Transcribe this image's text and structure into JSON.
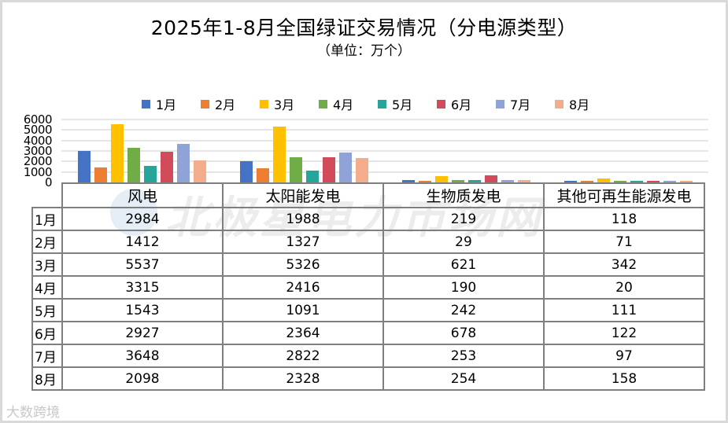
{
  "title": "2025年1-8月全国绿证交易情况（分电源类型）",
  "subtitle": "（单位：万个）",
  "watermark": "北极星电力市场网",
  "corner_watermark": "大数跨境",
  "legend": [
    {
      "label": "1月",
      "color": "#4472c4"
    },
    {
      "label": "2月",
      "color": "#ed7d31"
    },
    {
      "label": "3月",
      "color": "#ffc000"
    },
    {
      "label": "4月",
      "color": "#70ad47"
    },
    {
      "label": "5月",
      "color": "#26a69a"
    },
    {
      "label": "6月",
      "color": "#d14b5a"
    },
    {
      "label": "7月",
      "color": "#8fa3d9"
    },
    {
      "label": "8月",
      "color": "#f4ad8c"
    }
  ],
  "y_ticks": [
    "6000",
    "5000",
    "4000",
    "3000",
    "2000",
    "1000",
    "0"
  ],
  "table": {
    "columns": [
      "风电",
      "太阳能发电",
      "生物质发电",
      "其他可再生能源发电"
    ],
    "rows": [
      {
        "label": "1月",
        "values": [
          "2984",
          "1988",
          "219",
          "118"
        ]
      },
      {
        "label": "2月",
        "values": [
          "1412",
          "1327",
          "29",
          "71"
        ]
      },
      {
        "label": "3月",
        "values": [
          "5537",
          "5326",
          "621",
          "342"
        ]
      },
      {
        "label": "4月",
        "values": [
          "3315",
          "2416",
          "190",
          "20"
        ]
      },
      {
        "label": "5月",
        "values": [
          "1543",
          "1091",
          "242",
          "111"
        ]
      },
      {
        "label": "6月",
        "values": [
          "2927",
          "2364",
          "678",
          "122"
        ]
      },
      {
        "label": "7月",
        "values": [
          "3648",
          "2822",
          "253",
          "97"
        ]
      },
      {
        "label": "8月",
        "values": [
          "2098",
          "2328",
          "254",
          "158"
        ]
      }
    ]
  },
  "chart_data": {
    "type": "bar",
    "title": "2025年1-8月全国绿证交易情况（分电源类型）",
    "subtitle": "（单位：万个）",
    "xlabel": "",
    "ylabel": "万个",
    "ylim": [
      0,
      6000
    ],
    "yticks": [
      0,
      1000,
      2000,
      3000,
      4000,
      5000,
      6000
    ],
    "grid": true,
    "legend_position": "top",
    "categories": [
      "风电",
      "太阳能发电",
      "生物质发电",
      "其他可再生能源发电"
    ],
    "series": [
      {
        "name": "1月",
        "color": "#4472c4",
        "values": [
          2984,
          1988,
          219,
          118
        ]
      },
      {
        "name": "2月",
        "color": "#ed7d31",
        "values": [
          1412,
          1327,
          29,
          71
        ]
      },
      {
        "name": "3月",
        "color": "#ffc000",
        "values": [
          5537,
          5326,
          621,
          342
        ]
      },
      {
        "name": "4月",
        "color": "#70ad47",
        "values": [
          3315,
          2416,
          190,
          20
        ]
      },
      {
        "name": "5月",
        "color": "#26a69a",
        "values": [
          1543,
          1091,
          242,
          111
        ]
      },
      {
        "name": "6月",
        "color": "#d14b5a",
        "values": [
          2927,
          2364,
          678,
          122
        ]
      },
      {
        "name": "7月",
        "color": "#8fa3d9",
        "values": [
          3648,
          2822,
          253,
          97
        ]
      },
      {
        "name": "8月",
        "color": "#f4ad8c",
        "values": [
          2098,
          2328,
          254,
          158
        ]
      }
    ],
    "data_table": true
  }
}
